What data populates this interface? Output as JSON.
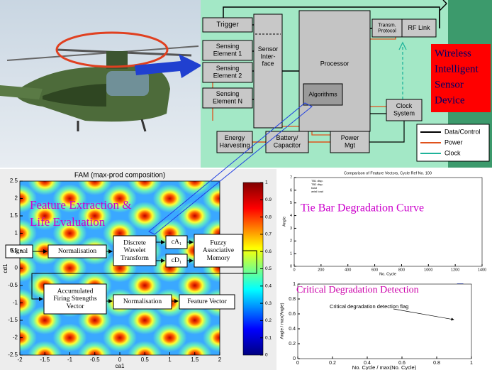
{
  "device": {
    "trigger": "Trigger",
    "sensing": [
      [
        "Sensing",
        "Element 1"
      ],
      [
        "Sensing",
        "Element 2"
      ],
      [
        "Sensing",
        "Element N"
      ]
    ],
    "interface": [
      "Sensor",
      "Inter-",
      "face"
    ],
    "processor": "Processor",
    "algorithms": "Algorithms",
    "transmission": [
      "Transm.",
      "Protocol"
    ],
    "rf_link": "RF Link",
    "clock": [
      "Clock",
      "System"
    ],
    "energy": [
      "Energy",
      "Harvesting"
    ],
    "battery": [
      "Battery/",
      "Capacitor"
    ],
    "power": [
      "Power",
      "Mgt"
    ],
    "title": [
      "Wireless",
      "Intelligent",
      "Sensor",
      "Device"
    ],
    "legend": [
      "Data/Control",
      "Power",
      "Clock"
    ]
  },
  "fam": {
    "title": "FAM (max-prod composition)",
    "xlabel": "ca1",
    "ylabel": "cd1",
    "xticks": [
      -2,
      -1.5,
      -1,
      -0.5,
      0,
      0.5,
      1,
      1.5,
      2
    ],
    "yticks": [
      2.5,
      2,
      1.5,
      1,
      0.5,
      0,
      -0.5,
      -1,
      -1.5,
      -2,
      -2.5
    ],
    "colorbar_ticks": [
      0,
      0.1,
      0.2,
      0.3,
      0.4,
      0.5,
      0.6,
      0.7,
      0.8,
      0.9,
      1
    ]
  },
  "flow": {
    "heading": [
      "Feature Extraction &",
      "Life Evaluation"
    ],
    "signal": "Signal",
    "normalisation_1": "Normalisation",
    "dwt": [
      "Discrete",
      "Wavelet",
      "Transform"
    ],
    "ca": "cA₁",
    "cd": "cD₁",
    "fam": [
      "Fuzzy",
      "Associative",
      "Memory"
    ],
    "afs": [
      "Accumulated",
      "Firing Strengths",
      "Vector"
    ],
    "normalisation_2": "Normalisation",
    "feature_vector": "Feature Vector"
  },
  "tie_bar": {
    "title": "Comparison of Feature Vectors, Cycle Ref No. 100",
    "label": "Tie Bar Degradation Curve",
    "xlabel": "No. Cycle",
    "ylabel": "Angle",
    "xticks": [
      0,
      200,
      400,
      600,
      800,
      1000,
      1200,
      1400
    ],
    "yticks": [
      0,
      1,
      2,
      3,
      4,
      5,
      6,
      7
    ],
    "legend": [
      "TB1 disp.",
      "TB2 disp.",
      "twist",
      "axial load"
    ]
  },
  "critical": {
    "label": "Critical Degradation Detection",
    "flag": "Critical degradation detection flag",
    "xlabel": "No. Cycle / max(No. Cycle)",
    "ylabel": "Angle / max(Angle)",
    "xticks": [
      0,
      0.2,
      0.4,
      0.6,
      0.8,
      1
    ],
    "yticks": [
      0,
      0.2,
      0.4,
      0.6,
      0.8,
      1
    ]
  }
}
